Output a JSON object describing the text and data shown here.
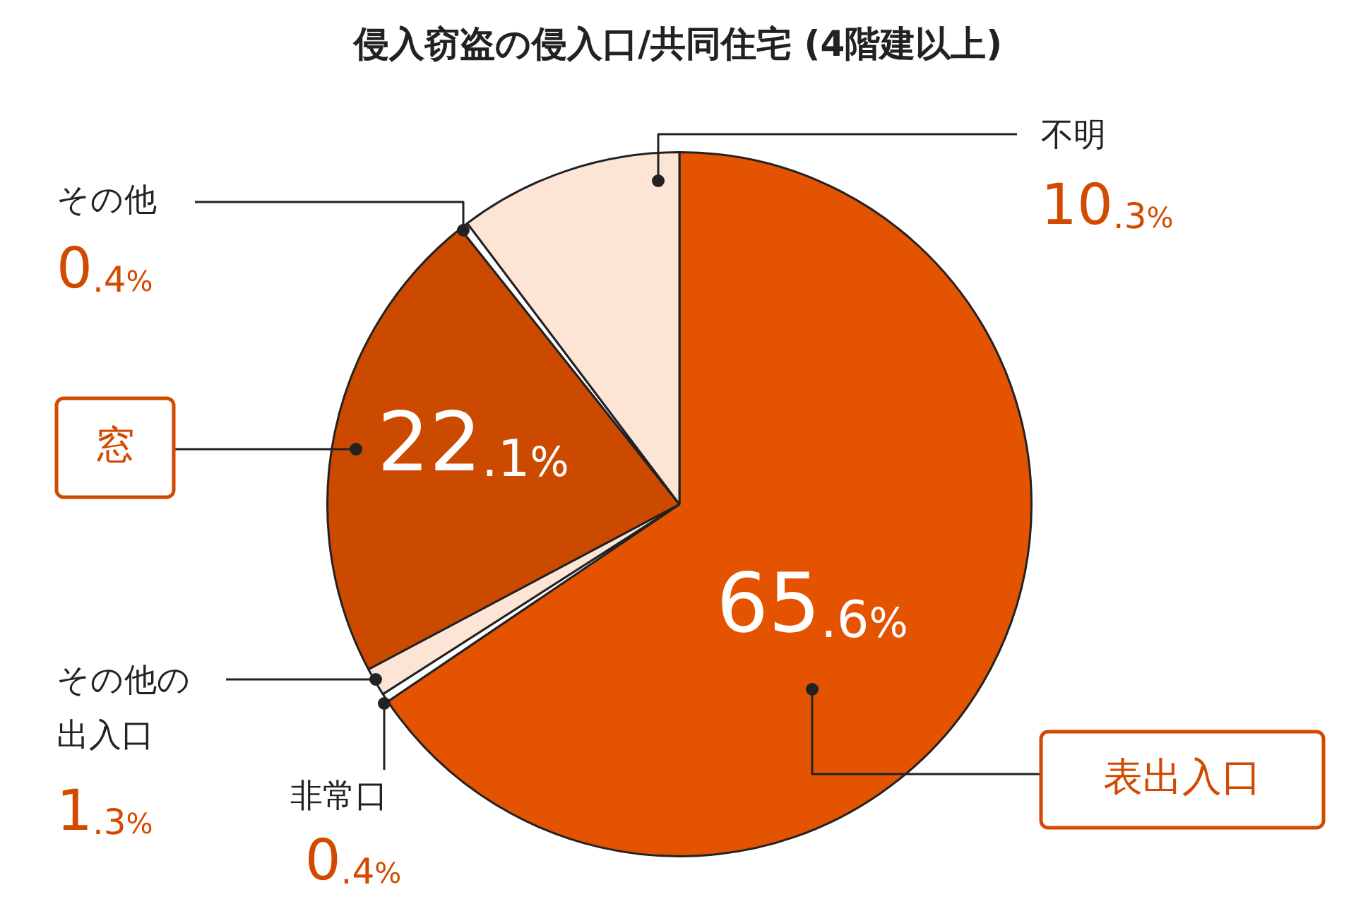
{
  "chart_data": {
    "type": "pie",
    "title": "侵入窃盗の侵入口/共同住宅 (4階建以上)",
    "categories": [
      "表出入口",
      "非常口",
      "その他の出入口",
      "窓",
      "その他",
      "不明"
    ],
    "values": [
      65.6,
      0.4,
      1.3,
      22.1,
      0.4,
      10.3
    ],
    "colors": [
      "#e35300",
      "#ffffff",
      "#fde5d6",
      "#cc4a00",
      "#ffffff",
      "#fde5d6"
    ],
    "value_labels": [
      "65.6%",
      "0.4%",
      "1.3%",
      "22.1%",
      "0.4%",
      "10.3%"
    ],
    "legend": false
  }
}
